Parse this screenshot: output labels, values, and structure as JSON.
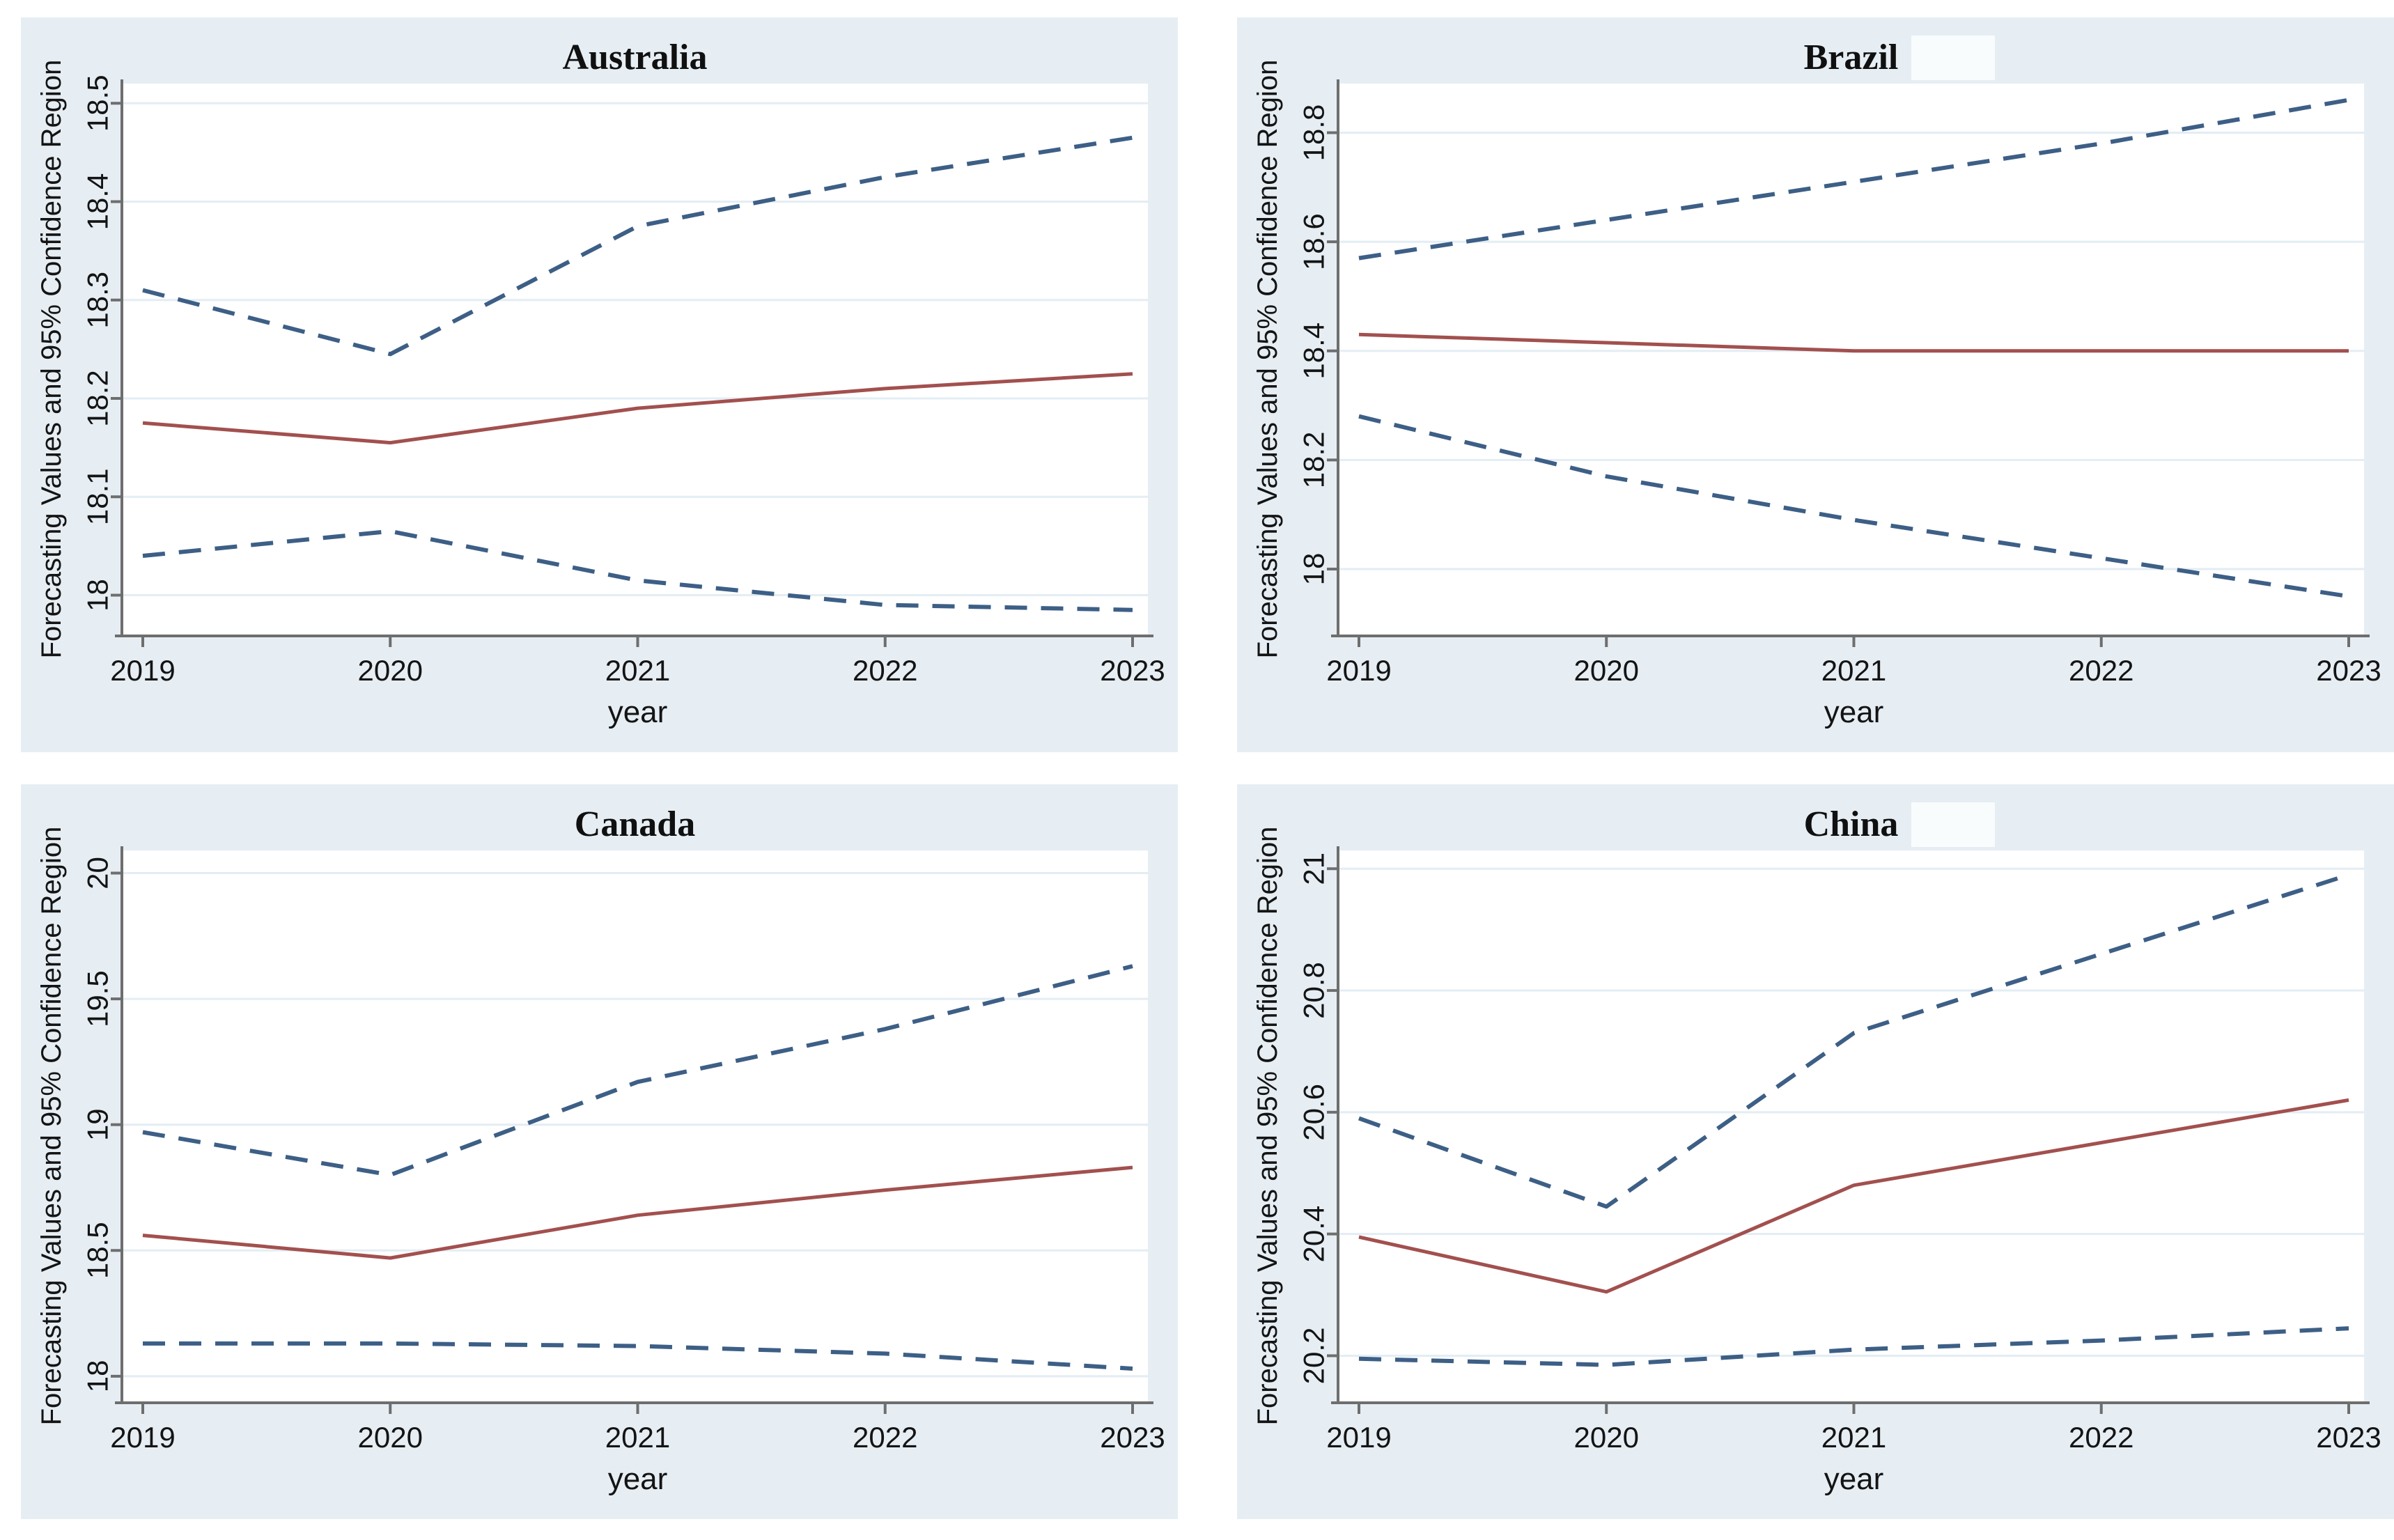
{
  "colors": {
    "panel_background": "#e6eef4",
    "plot_background": "#ffffff",
    "gridline": "#e3edf4",
    "axis": "#6e6e6e",
    "text": "#141414",
    "forecast_line": "#a2504e",
    "confidence_line": "#3d5f86"
  },
  "chart_data": [
    {
      "type": "line",
      "title": "Australia",
      "title_highlight": false,
      "xlabel": "year",
      "ylabel": "Forecasting Values and 95% Confidence Region",
      "x": [
        2019,
        2020,
        2021,
        2022,
        2023
      ],
      "x_tick_labels": [
        "2019",
        "2020",
        "2021",
        "2022",
        "2023"
      ],
      "yticks": [
        18,
        18.1,
        18.2,
        18.3,
        18.4,
        18.5
      ],
      "ytick_labels": [
        "18",
        "18.1",
        "18.2",
        "18.3",
        "18.4",
        "18.5"
      ],
      "ylim": [
        17.96,
        18.52
      ],
      "grid": true,
      "legend": "none",
      "series": [
        {
          "name": "upper 95% confidence bound",
          "style": "dashed",
          "color_key": "confidence_line",
          "values": [
            18.31,
            18.245,
            18.375,
            18.425,
            18.465
          ]
        },
        {
          "name": "forecast",
          "style": "solid",
          "color_key": "forecast_line",
          "values": [
            18.175,
            18.155,
            18.19,
            18.21,
            18.225
          ]
        },
        {
          "name": "lower 95% confidence bound",
          "style": "dashed",
          "color_key": "confidence_line",
          "values": [
            18.04,
            18.065,
            18.015,
            17.99,
            17.985
          ]
        }
      ]
    },
    {
      "type": "line",
      "title": "Brazil",
      "title_highlight": true,
      "xlabel": "year",
      "ylabel": "Forecasting Values and 95% Confidence Region",
      "x": [
        2019,
        2020,
        2021,
        2022,
        2023
      ],
      "x_tick_labels": [
        "2019",
        "2020",
        "2021",
        "2022",
        "2023"
      ],
      "yticks": [
        18,
        18.2,
        18.4,
        18.6,
        18.8
      ],
      "ytick_labels": [
        "18",
        "18.2",
        "18.4",
        "18.6",
        "18.8"
      ],
      "ylim": [
        17.88,
        18.89
      ],
      "grid": true,
      "legend": "none",
      "series": [
        {
          "name": "upper 95% confidence bound",
          "style": "dashed",
          "color_key": "confidence_line",
          "values": [
            18.57,
            18.64,
            18.71,
            18.78,
            18.86
          ]
        },
        {
          "name": "forecast",
          "style": "solid",
          "color_key": "forecast_line",
          "values": [
            18.43,
            18.415,
            18.4,
            18.4,
            18.4
          ]
        },
        {
          "name": "lower 95% confidence bound",
          "style": "dashed",
          "color_key": "confidence_line",
          "values": [
            18.28,
            18.17,
            18.09,
            18.02,
            17.95
          ]
        }
      ]
    },
    {
      "type": "line",
      "title": "Canada",
      "title_highlight": false,
      "xlabel": "year",
      "ylabel": "Forecasting Values and 95% Confidence Region",
      "x": [
        2019,
        2020,
        2021,
        2022,
        2023
      ],
      "x_tick_labels": [
        "2019",
        "2020",
        "2021",
        "2022",
        "2023"
      ],
      "yticks": [
        18,
        18.5,
        19,
        19.5,
        20
      ],
      "ytick_labels": [
        "18",
        "18.5",
        "19",
        "19.5",
        "20"
      ],
      "ylim": [
        17.9,
        20.09
      ],
      "grid": true,
      "legend": "none",
      "series": [
        {
          "name": "upper 95% confidence bound",
          "style": "dashed",
          "color_key": "confidence_line",
          "values": [
            18.97,
            18.8,
            19.17,
            19.38,
            19.63
          ]
        },
        {
          "name": "forecast",
          "style": "solid",
          "color_key": "forecast_line",
          "values": [
            18.56,
            18.47,
            18.64,
            18.74,
            18.83
          ]
        },
        {
          "name": "lower 95% confidence bound",
          "style": "dashed",
          "color_key": "confidence_line",
          "values": [
            18.13,
            18.13,
            18.12,
            18.09,
            18.03
          ]
        }
      ]
    },
    {
      "type": "line",
      "title": "China",
      "title_highlight": true,
      "xlabel": "year",
      "ylabel": "Forecasting Values and 95% Confidence Region",
      "x": [
        2019,
        2020,
        2021,
        2022,
        2023
      ],
      "x_tick_labels": [
        "2019",
        "2020",
        "2021",
        "2022",
        "2023"
      ],
      "yticks": [
        20.2,
        20.4,
        20.6,
        20.8,
        21
      ],
      "ytick_labels": [
        "20.2",
        "20.4",
        "20.6",
        "20.8",
        "21"
      ],
      "ylim": [
        20.125,
        21.03
      ],
      "grid": true,
      "legend": "none",
      "series": [
        {
          "name": "upper 95% confidence bound",
          "style": "dashed",
          "color_key": "confidence_line",
          "values": [
            20.59,
            20.445,
            20.73,
            20.86,
            20.99
          ]
        },
        {
          "name": "forecast",
          "style": "solid",
          "color_key": "forecast_line",
          "values": [
            20.395,
            20.305,
            20.48,
            20.55,
            20.62
          ]
        },
        {
          "name": "lower 95% confidence bound",
          "style": "dashed",
          "color_key": "confidence_line",
          "values": [
            20.195,
            20.185,
            20.21,
            20.225,
            20.245
          ]
        }
      ]
    }
  ]
}
